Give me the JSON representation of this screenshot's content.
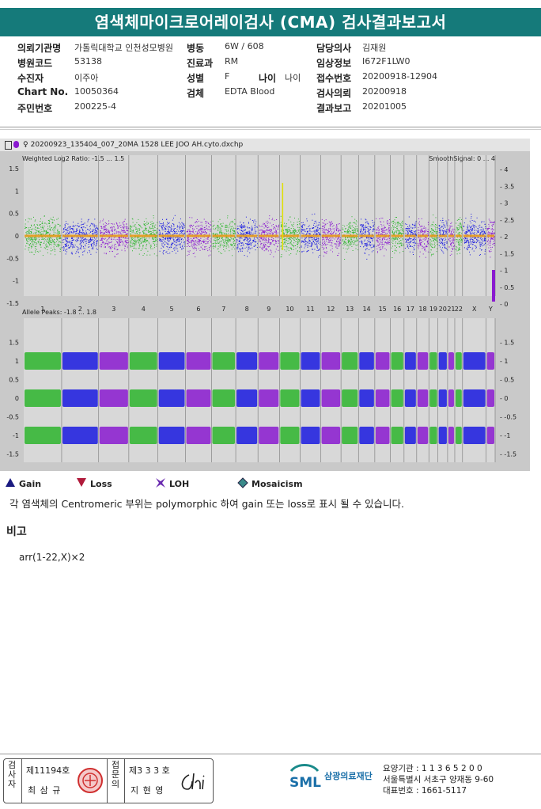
{
  "title": "염색체마이크로어레이검사 (CMA) 검사결과보고서",
  "info": {
    "rows": [
      [
        {
          "label": "의뢰기관명",
          "value": "가톨릭대학교 인천성모병원"
        },
        {
          "label": "병동",
          "value": "6W / 608"
        },
        {
          "label": "담당의사",
          "value": "김재원"
        }
      ],
      [
        {
          "label": "병원코드",
          "value": "53138"
        },
        {
          "label": "진료과",
          "value": "RM"
        },
        {
          "label": "임상정보",
          "value": "I672F1LW0"
        }
      ],
      [
        {
          "label": "수진자",
          "value": "이주아"
        },
        {
          "label": "성별",
          "value": "F"
        },
        {
          "label": "접수번호",
          "value": "20200918-12904"
        }
      ],
      [
        {
          "label": "Chart No.",
          "value": "10050364"
        },
        {
          "label": "검체",
          "value": "EDTA Blood"
        },
        {
          "label": "검사의뢰",
          "value": "20200918"
        }
      ],
      [
        {
          "label": "주민번호",
          "value": "200225-4"
        },
        {
          "label": "",
          "value": ""
        },
        {
          "label": "결과보고",
          "value": "20201005"
        }
      ]
    ],
    "age_label": "나이",
    "age_value": "나이"
  },
  "plot": {
    "file": "20200923_135404_007_20MA 1528 LEE JOO AH.cyto.dxchp",
    "top_label": "Weighted Log2 Ratio: -1.5 ... 1.5",
    "top_right_label": "SmoothSignal: 0 ... 4",
    "bottom_label": "Allele Peaks: -1.8 ... 1.8",
    "left_ticks_top": [
      "1.5",
      "1",
      "0.5",
      "0",
      "-0.5",
      "-1",
      "-1.5"
    ],
    "right_ticks_top": [
      "4",
      "3.5",
      "3",
      "2.5",
      "2",
      "1.5",
      "1",
      "0.5",
      "0"
    ],
    "ticks_bottom": [
      "1.5",
      "1",
      "0.5",
      "0",
      "-0.5",
      "-1",
      "-1.5"
    ],
    "chromosomes": [
      "1",
      "2",
      "3",
      "4",
      "5",
      "6",
      "7",
      "8",
      "9",
      "10",
      "11",
      "12",
      "13",
      "14",
      "15",
      "16",
      "17",
      "18",
      "19",
      "20",
      "21",
      "22",
      "X",
      "Y"
    ],
    "chromosome_label_text": "1 2 3 4 5 6 7 8 9 10 11 12 13 14 15 16 17 18 19 20 21 22 X Y",
    "colors": {
      "green": "#2db52d",
      "blue": "#1a1ae0",
      "purple": "#8a1ad0",
      "orange": "#e89a1a",
      "yellow": "#e0e000"
    }
  },
  "legend": [
    {
      "icon": "gain-triangle-icon",
      "label": "Gain"
    },
    {
      "icon": "loss-triangle-icon",
      "label": "Loss"
    },
    {
      "icon": "loh-star-icon",
      "label": "LOH"
    },
    {
      "icon": "mosaicism-diamond-icon",
      "label": "Mosaicism"
    }
  ],
  "note": "각 염색체의 Centromeric 부위는 polymorphic 하여 gain 또는 loss로 표시 될 수 있습니다.",
  "remarks_title": "비고",
  "result": "arr(1-22,X)×2",
  "footer": {
    "inspector_label": "검사자",
    "inspector_no": "제11194호",
    "inspector_name": "최 삼 규",
    "reviewer_label": "접문의",
    "reviewer_no": "제3 3 3 호",
    "reviewer_name": "지 현 영",
    "logo": "SML",
    "org": "삼광의료재단",
    "line1": "요양기관 : 1 1 3 6 5 2 0 0",
    "line2": "서울특별시 서초구 양재동 9-60",
    "line3": "대표번호 : 1661-5117"
  }
}
